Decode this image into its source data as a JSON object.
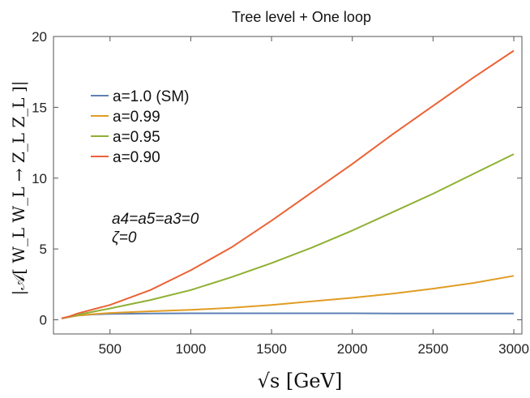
{
  "chart_data": {
    "type": "line",
    "title": "Tree level + One loop",
    "xlabel": "√s [GeV]",
    "ylabel": "|𝒜[ W_L W_L → Z_L Z_L ]|",
    "xlim": [
      150,
      3050
    ],
    "ylim": [
      -1,
      20
    ],
    "xticks": [
      500,
      1000,
      1500,
      2000,
      2500,
      3000
    ],
    "yticks": [
      0,
      5,
      10,
      15,
      20
    ],
    "grid": false,
    "legend_position": "top-left",
    "annotations": [
      "a4=a5=a3=0",
      "ζ=0"
    ],
    "x": [
      200,
      250,
      300,
      400,
      500,
      750,
      1000,
      1250,
      1500,
      1750,
      2000,
      2250,
      2500,
      2750,
      3000
    ],
    "series": [
      {
        "name": "a=1.0 (SM)",
        "color": "#5e81b5",
        "values": [
          0.1,
          0.2,
          0.3,
          0.38,
          0.42,
          0.45,
          0.46,
          0.46,
          0.46,
          0.46,
          0.46,
          0.45,
          0.45,
          0.45,
          0.45
        ]
      },
      {
        "name": "a=0.99",
        "color": "#e19c24",
        "values": [
          0.1,
          0.2,
          0.3,
          0.4,
          0.48,
          0.6,
          0.7,
          0.85,
          1.05,
          1.3,
          1.55,
          1.85,
          2.2,
          2.6,
          3.1
        ]
      },
      {
        "name": "a=0.95",
        "color": "#8fb032",
        "values": [
          0.1,
          0.22,
          0.35,
          0.58,
          0.8,
          1.4,
          2.1,
          3.0,
          4.0,
          5.1,
          6.3,
          7.6,
          8.9,
          10.3,
          11.7
        ]
      },
      {
        "name": "a=0.90",
        "color": "#eb6235",
        "values": [
          0.1,
          0.25,
          0.45,
          0.75,
          1.05,
          2.1,
          3.5,
          5.1,
          7.0,
          9.0,
          11.0,
          13.1,
          15.1,
          17.1,
          19.0
        ]
      }
    ]
  }
}
